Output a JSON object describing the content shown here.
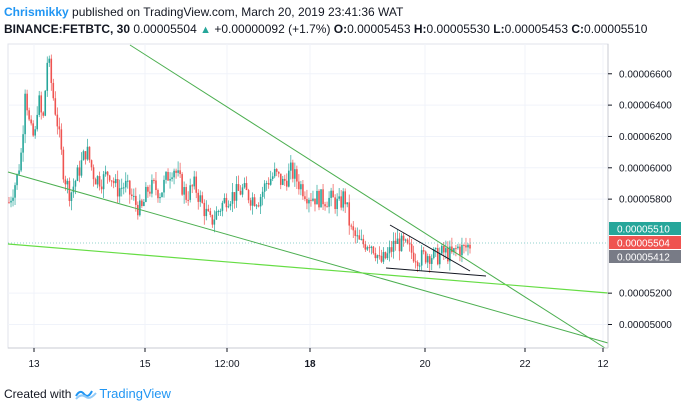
{
  "header": {
    "author": "Chrismikky",
    "published_text": " published on TradingView.com, March 20, 2019 23:41:36 WAT",
    "symbol": "BINANCE:FETBTC, 30",
    "last_price": "0.00005504",
    "change": "+0.00000092 (+1.7%)",
    "o_label": "O:",
    "o_value": "0.00005453",
    "h_label": "H:",
    "h_value": "0.00005530",
    "l_label": "L:",
    "l_value": "0.00005453",
    "c_label": "C:",
    "c_value": "0.00005510"
  },
  "footer": {
    "created_with": "Created with",
    "brand": "TradingView"
  },
  "colors": {
    "up": "#26a69a",
    "down": "#ef5350",
    "trendline": "#4caf50",
    "support": "#66dd44",
    "pattern": "#131722"
  },
  "chart_data": {
    "type": "candlestick",
    "x_tick_labels": [
      "13",
      "15",
      "12:00",
      "18",
      "20",
      "22",
      "12"
    ],
    "y_tick_labels": [
      "0.00006600",
      "0.00006400",
      "0.00006200",
      "0.00006000",
      "0.00005800",
      "0.00005200",
      "0.00005000"
    ],
    "ylim": [
      4.85e-05,
      6.79e-05
    ],
    "price_badges": [
      {
        "label": "0.00005510",
        "value": 5.51e-05,
        "color": "#26a69a"
      },
      {
        "label": "0.00005504",
        "value": 5.504e-05,
        "color": "#ef5350"
      },
      {
        "label": "0.00005412",
        "value": 5.412e-05,
        "color": "#787b86"
      }
    ],
    "price_path": [
      [
        0,
        5.78e-05
      ],
      [
        0.05,
        5.94e-05
      ],
      [
        0.08,
        6.12e-05
      ],
      [
        0.1,
        6.52e-05
      ],
      [
        0.13,
        6.24e-05
      ],
      [
        0.16,
        6.18e-05
      ],
      [
        0.18,
        6.46e-05
      ],
      [
        0.21,
        6.28e-05
      ],
      [
        0.24,
        6.72e-05
      ],
      [
        0.27,
        6.48e-05
      ],
      [
        0.3,
        6.29e-05
      ],
      [
        0.34,
        5.96e-05
      ],
      [
        0.38,
        5.83e-05
      ],
      [
        0.43,
        5.97e-05
      ],
      [
        0.48,
        6.12e-05
      ],
      [
        0.53,
        5.94e-05
      ],
      [
        0.58,
        5.92e-05
      ],
      [
        0.62,
        5.98e-05
      ],
      [
        0.67,
        5.86e-05
      ],
      [
        0.72,
        5.89e-05
      ],
      [
        0.78,
        5.78e-05
      ],
      [
        0.82,
        5.72e-05
      ],
      [
        0.86,
        5.86e-05
      ],
      [
        0.9,
        5.88e-05
      ],
      [
        0.94,
        5.84e-05
      ],
      [
        0.98,
        5.94e-05
      ],
      [
        1.02,
        6.01e-05
      ],
      [
        1.06,
        5.91e-05
      ],
      [
        1.1,
        5.82e-05
      ],
      [
        1.15,
        5.89e-05
      ],
      [
        1.2,
        5.76e-05
      ],
      [
        1.25,
        5.65e-05
      ],
      [
        1.3,
        5.73e-05
      ],
      [
        1.35,
        5.81e-05
      ],
      [
        1.4,
        5.83e-05
      ],
      [
        1.45,
        5.86e-05
      ],
      [
        1.5,
        5.81e-05
      ],
      [
        1.55,
        5.8e-05
      ],
      [
        1.6,
        5.91e-05
      ],
      [
        1.65,
        5.96e-05
      ],
      [
        1.7,
        5.9e-05
      ],
      [
        1.75,
        5.98e-05
      ],
      [
        1.8,
        5.9e-05
      ],
      [
        1.85,
        5.83e-05
      ],
      [
        1.9,
        5.81e-05
      ],
      [
        1.95,
        5.8e-05
      ],
      [
        2.0,
        5.8e-05
      ],
      [
        2.05,
        5.76e-05
      ],
      [
        2.08,
        5.83e-05
      ],
      [
        2.12,
        5.6e-05
      ],
      [
        2.18,
        5.51e-05
      ],
      [
        2.24,
        5.53e-05
      ],
      [
        2.28,
        5.46e-05
      ],
      [
        2.3,
        5.39e-05
      ],
      [
        2.35,
        5.44e-05
      ],
      [
        2.4,
        5.53e-05
      ],
      [
        2.45,
        5.5e-05
      ],
      [
        2.5,
        5.46e-05
      ],
      [
        2.55,
        5.42e-05
      ],
      [
        2.6,
        5.45e-05
      ],
      [
        2.65,
        5.43e-05
      ],
      [
        2.7,
        5.46e-05
      ],
      [
        2.75,
        5.44e-05
      ],
      [
        2.78,
        5.49e-05
      ],
      [
        2.82,
        5.48e-05
      ],
      [
        2.86,
        5.51e-05
      ]
    ]
  }
}
